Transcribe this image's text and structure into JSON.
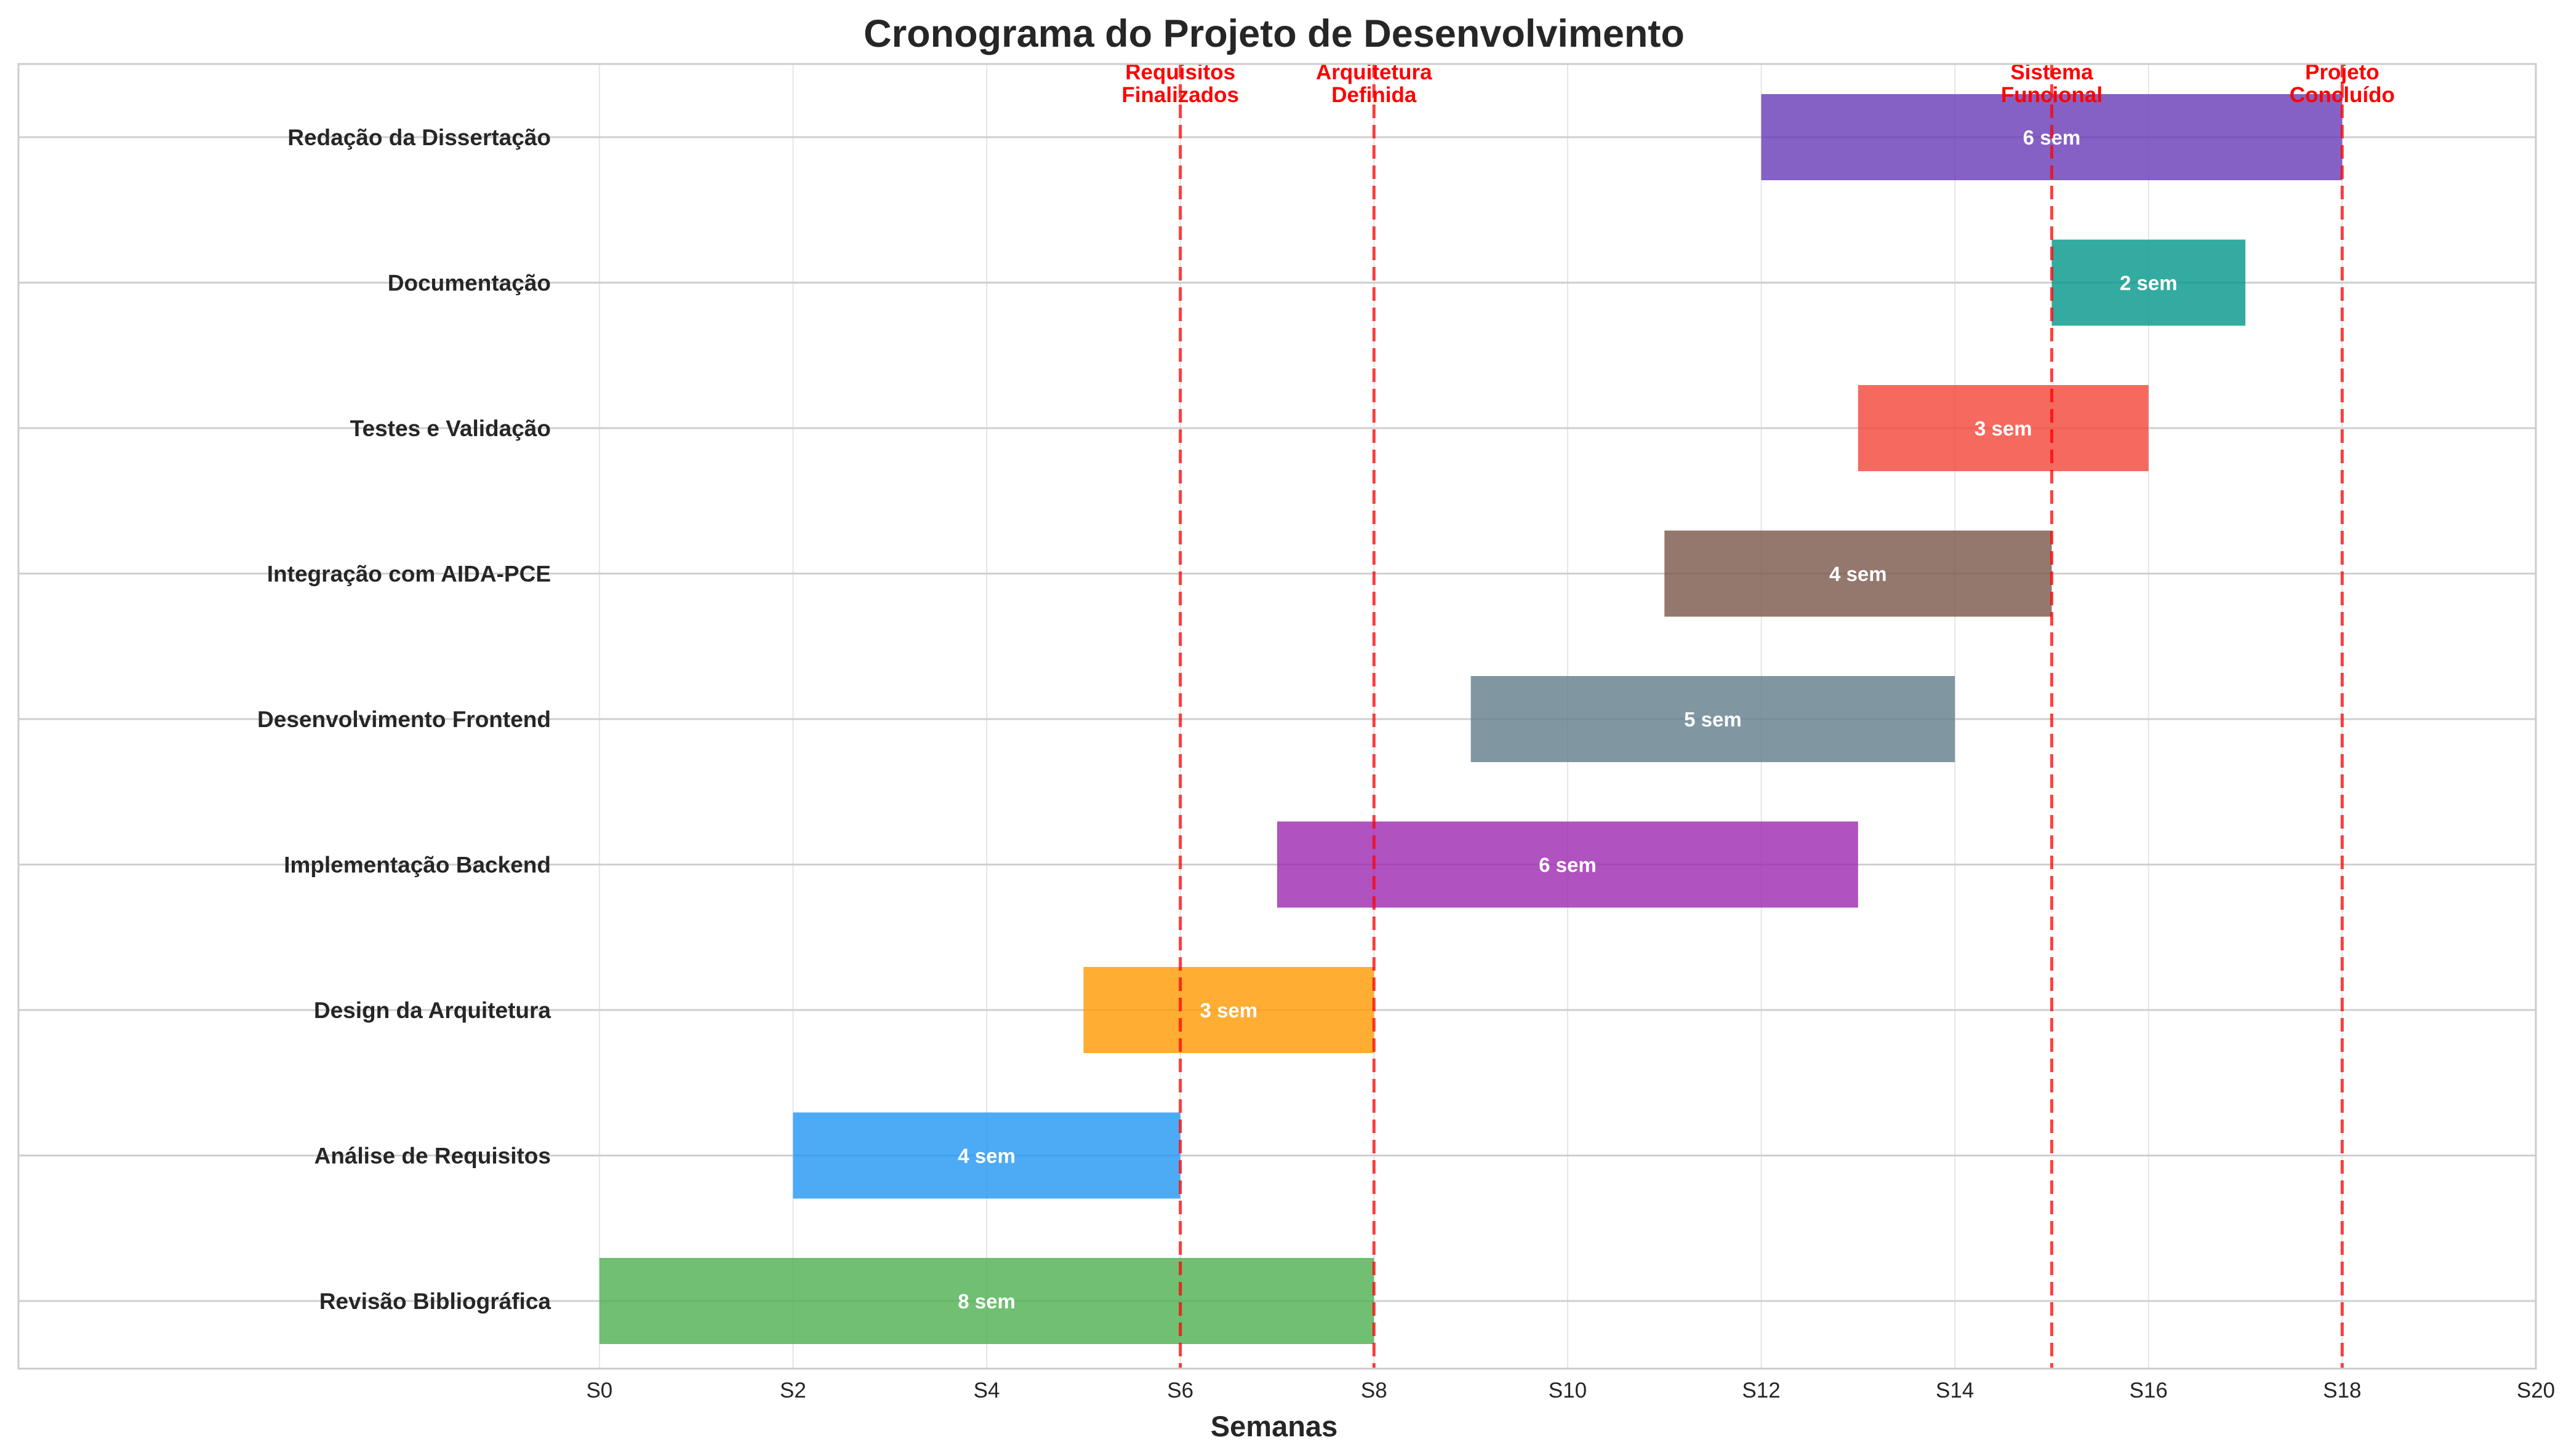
{
  "chart_data": {
    "type": "gantt",
    "title": "Cronograma do Projeto de Desenvolvimento",
    "xlabel": "Semanas",
    "xlim": [
      -6,
      20
    ],
    "x_ticks": [
      0,
      2,
      4,
      6,
      8,
      10,
      12,
      14,
      16,
      18,
      20
    ],
    "x_tick_labels": [
      "S0",
      "S2",
      "S4",
      "S6",
      "S8",
      "S10",
      "S12",
      "S14",
      "S16",
      "S18",
      "S20"
    ],
    "grid": true,
    "tasks": [
      {
        "name": "Revisão Bibliográfica",
        "start": 0,
        "duration": 8,
        "label": "8 sem",
        "color": "#4CAF50"
      },
      {
        "name": "Análise de Requisitos",
        "start": 2,
        "duration": 4,
        "label": "4 sem",
        "color": "#2196F3"
      },
      {
        "name": "Design da Arquitetura",
        "start": 5,
        "duration": 3,
        "label": "3 sem",
        "color": "#FF9800"
      },
      {
        "name": "Implementação Backend",
        "start": 7,
        "duration": 6,
        "label": "6 sem",
        "color": "#9C27B0"
      },
      {
        "name": "Desenvolvimento Frontend",
        "start": 9,
        "duration": 5,
        "label": "5 sem",
        "color": "#607D8B"
      },
      {
        "name": "Integração com AIDA-PCE",
        "start": 11,
        "duration": 4,
        "label": "4 sem",
        "color": "#795548"
      },
      {
        "name": "Testes e Validação",
        "start": 13,
        "duration": 3,
        "label": "3 sem",
        "color": "#F44336"
      },
      {
        "name": "Documentação",
        "start": 15,
        "duration": 2,
        "label": "2 sem",
        "color": "#009688"
      },
      {
        "name": "Redação da Dissertação",
        "start": 12,
        "duration": 6,
        "label": "6 sem",
        "color": "#673AB7"
      }
    ],
    "milestones": [
      {
        "week": 6,
        "label_lines": [
          "Requisitos",
          "Finalizados"
        ]
      },
      {
        "week": 8,
        "label_lines": [
          "Arquitetura",
          "Definida"
        ]
      },
      {
        "week": 15,
        "label_lines": [
          "Sistema",
          "Funcional"
        ]
      },
      {
        "week": 18,
        "label_lines": [
          "Projeto",
          "Concluído"
        ]
      }
    ],
    "milestone_color": "#FF0000"
  }
}
